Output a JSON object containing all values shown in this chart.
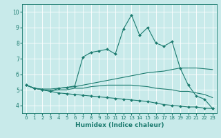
{
  "xlabel": "Humidex (Indice chaleur)",
  "background_color": "#c8eaea",
  "grid_color": "#ffffff",
  "line_color": "#1a7a6e",
  "xlim": [
    -0.5,
    23.5
  ],
  "ylim": [
    3.5,
    10.5
  ],
  "xticks": [
    0,
    1,
    2,
    3,
    4,
    5,
    6,
    7,
    8,
    9,
    10,
    11,
    12,
    13,
    14,
    15,
    16,
    17,
    18,
    19,
    20,
    21,
    22,
    23
  ],
  "yticks": [
    4,
    5,
    6,
    7,
    8,
    9,
    10
  ],
  "line1_x": [
    0,
    1,
    2,
    3,
    4,
    5,
    6,
    7,
    8,
    9,
    10,
    11,
    12,
    13,
    14,
    15,
    16,
    17,
    18,
    19,
    20,
    21,
    22,
    23
  ],
  "line1_y": [
    5.3,
    5.1,
    5.0,
    4.9,
    5.1,
    5.15,
    5.25,
    7.1,
    7.4,
    7.5,
    7.6,
    7.3,
    8.9,
    9.8,
    8.5,
    9.0,
    8.0,
    7.8,
    8.1,
    6.4,
    5.3,
    4.6,
    4.4,
    3.8
  ],
  "line2_x": [
    0,
    1,
    2,
    3,
    4,
    5,
    6,
    7,
    8,
    9,
    10,
    11,
    12,
    13,
    14,
    15,
    16,
    17,
    18,
    19,
    20,
    21,
    22,
    23
  ],
  "line2_y": [
    5.3,
    5.1,
    5.05,
    5.05,
    5.1,
    5.15,
    5.2,
    5.3,
    5.4,
    5.5,
    5.6,
    5.7,
    5.8,
    5.9,
    6.0,
    6.1,
    6.15,
    6.2,
    6.3,
    6.4,
    6.4,
    6.4,
    6.35,
    6.3
  ],
  "line3_x": [
    0,
    1,
    2,
    3,
    4,
    5,
    6,
    7,
    8,
    9,
    10,
    11,
    12,
    13,
    14,
    15,
    16,
    17,
    18,
    19,
    20,
    21,
    22,
    23
  ],
  "line3_y": [
    5.3,
    5.1,
    5.0,
    4.95,
    5.0,
    5.0,
    5.1,
    5.1,
    5.2,
    5.25,
    5.3,
    5.3,
    5.3,
    5.3,
    5.25,
    5.2,
    5.1,
    5.05,
    5.0,
    4.9,
    4.9,
    4.8,
    4.7,
    4.5
  ],
  "line4_x": [
    0,
    1,
    2,
    3,
    4,
    5,
    6,
    7,
    8,
    9,
    10,
    11,
    12,
    13,
    14,
    15,
    16,
    17,
    18,
    19,
    20,
    21,
    22,
    23
  ],
  "line4_y": [
    5.3,
    5.1,
    5.0,
    4.9,
    4.8,
    4.75,
    4.7,
    4.65,
    4.6,
    4.55,
    4.5,
    4.45,
    4.4,
    4.35,
    4.3,
    4.25,
    4.15,
    4.05,
    4.0,
    3.95,
    3.9,
    3.9,
    3.82,
    3.8
  ]
}
